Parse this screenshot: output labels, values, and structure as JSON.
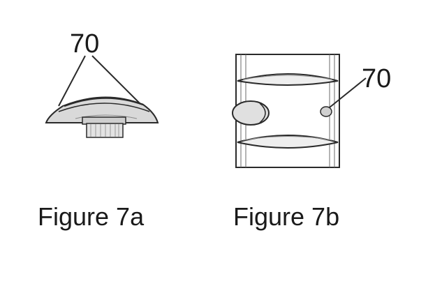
{
  "figures": [
    {
      "caption": "Figure 7a",
      "reference_label": "70"
    },
    {
      "caption": "Figure 7b",
      "reference_label": "70"
    }
  ],
  "colors": {
    "ink": "#1a1a1a",
    "background": "#ffffff",
    "shade": "#d9d9d9"
  }
}
